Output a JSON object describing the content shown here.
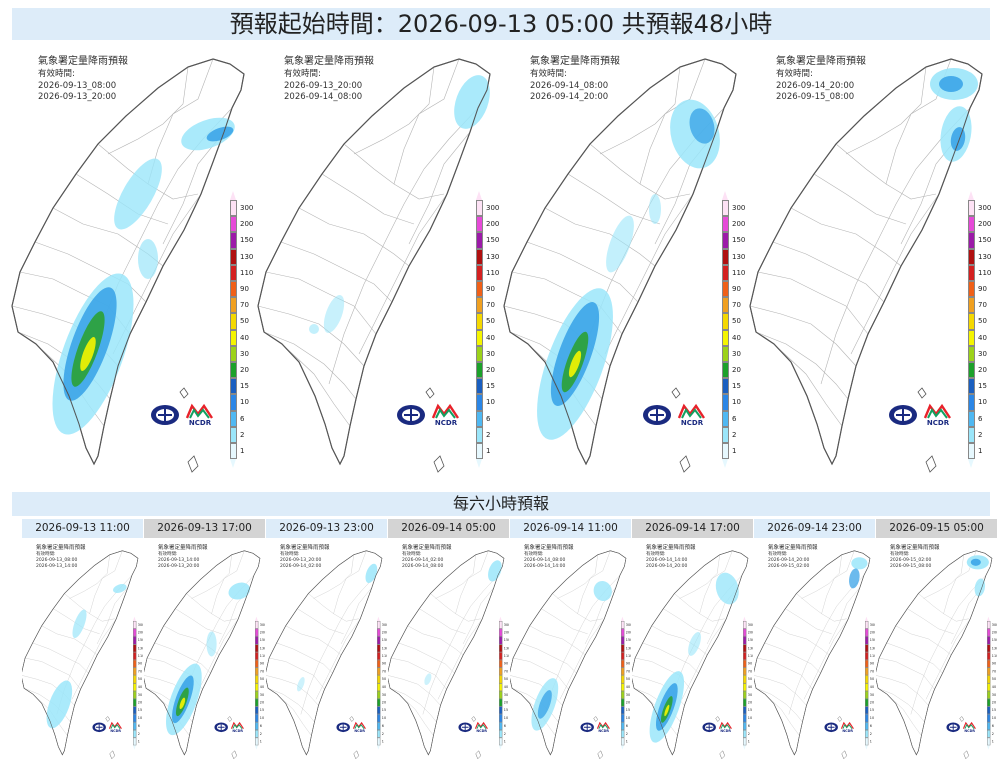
{
  "header": {
    "title": "預報起始時間：2026-09-13 05:00  共預報48小時"
  },
  "colors": {
    "header_bg": "#ddecf9",
    "tab_grey_bg": "#d4d4d4",
    "border": "#888888",
    "rain_light": "#9be6fa",
    "rain_blue": "#2e9ce6",
    "rain_green": "#2aa02a",
    "rain_yellow": "#f5f500"
  },
  "legend": {
    "values": [
      "300",
      "200",
      "150",
      "130",
      "110",
      "90",
      "70",
      "50",
      "40",
      "30",
      "20",
      "15",
      "10",
      "6",
      "2",
      "1"
    ],
    "colors": [
      "#fde2f5",
      "#e64ad8",
      "#9c1aa8",
      "#b01010",
      "#d42020",
      "#f06018",
      "#f0a020",
      "#f5d800",
      "#f5f500",
      "#9cd21a",
      "#1ca12a",
      "#1a5fc0",
      "#2b86e6",
      "#4fb8f2",
      "#9be6fa",
      "#e6f8fe"
    ]
  },
  "logos": {
    "left_icon": "cwa-logo-icon",
    "right_icon": "ncdr-logo-icon",
    "right_text": "NCDR"
  },
  "big_panels": [
    {
      "title": "氣象署定量降雨預報",
      "subtitle": "有效時間:",
      "start": "2026-09-13_08:00",
      "end": "2026-09-13_20:00"
    },
    {
      "title": "氣象署定量降雨預報",
      "subtitle": "有效時間:",
      "start": "2026-09-13_20:00",
      "end": "2026-09-14_08:00"
    },
    {
      "title": "氣象署定量降雨預報",
      "subtitle": "有效時間:",
      "start": "2026-09-14_08:00",
      "end": "2026-09-14_20:00"
    },
    {
      "title": "氣象署定量降雨預報",
      "subtitle": "有效時間:",
      "start": "2026-09-14_20:00",
      "end": "2026-09-15_08:00"
    }
  ],
  "six_hour": {
    "title": "每六小時預報",
    "panels": [
      {
        "label": "2026-09-13 11:00",
        "style": "light",
        "title": "氣象署定量降雨預報",
        "subtitle": "有效時間:",
        "start": "2026-09-13_08:00",
        "end": "2026-09-13_14:00"
      },
      {
        "label": "2026-09-13 17:00",
        "style": "grey",
        "title": "氣象署定量降雨預報",
        "subtitle": "有效時間:",
        "start": "2026-09-13_14:00",
        "end": "2026-09-13_20:00"
      },
      {
        "label": "2026-09-13 23:00",
        "style": "light",
        "title": "氣象署定量降雨預報",
        "subtitle": "有效時間:",
        "start": "2026-09-13_20:00",
        "end": "2026-09-14_02:00"
      },
      {
        "label": "2026-09-14 05:00",
        "style": "grey",
        "title": "氣象署定量降雨預報",
        "subtitle": "有效時間:",
        "start": "2026-09-14_02:00",
        "end": "2026-09-14_08:00"
      },
      {
        "label": "2026-09-14 11:00",
        "style": "light",
        "title": "氣象署定量降雨預報",
        "subtitle": "有效時間:",
        "start": "2026-09-14_08:00",
        "end": "2026-09-14_14:00"
      },
      {
        "label": "2026-09-14 17:00",
        "style": "grey",
        "title": "氣象署定量降雨預報",
        "subtitle": "有效時間:",
        "start": "2026-09-14_14:00",
        "end": "2026-09-14_20:00"
      },
      {
        "label": "2026-09-14 23:00",
        "style": "light",
        "title": "氣象署定量降雨預報",
        "subtitle": "有效時間:",
        "start": "2026-09-14_20:00",
        "end": "2026-09-15_02:00"
      },
      {
        "label": "2026-09-15 05:00",
        "style": "grey",
        "title": "氣象署定量降雨預報",
        "subtitle": "有效時間:",
        "start": "2026-09-15_02:00",
        "end": "2026-09-15_08:00"
      }
    ]
  }
}
